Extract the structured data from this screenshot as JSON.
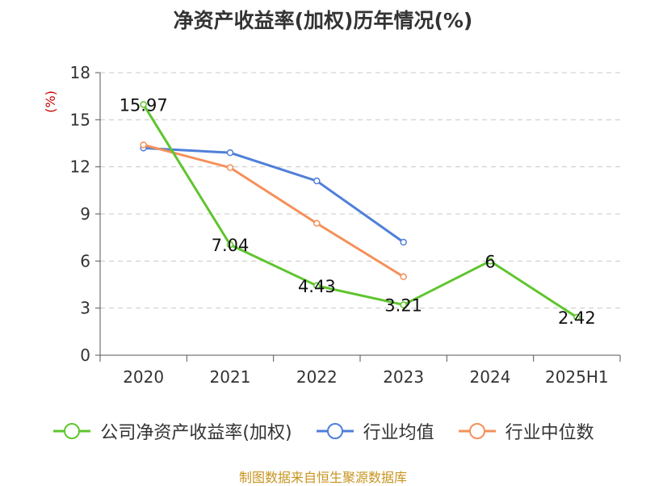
{
  "chart_data": {
    "type": "line",
    "title": "净资产收益率(加权)历年情况(%)",
    "ylabel": "(%)",
    "categories": [
      "2020",
      "2021",
      "2022",
      "2023",
      "2024",
      "2025H1"
    ],
    "ylim": [
      0,
      18
    ],
    "yticks": [
      0,
      3,
      6,
      9,
      12,
      15,
      18
    ],
    "grid": true,
    "legend_position": "bottom",
    "series": [
      {
        "name": "公司净资产收益率(加权)",
        "color": "#5fc52e",
        "values": [
          15.97,
          7.04,
          4.43,
          3.21,
          6,
          2.42
        ],
        "labels": [
          "15.97",
          "7.04",
          "4.43",
          "3.21",
          "6",
          "2.42"
        ]
      },
      {
        "name": "行业均值",
        "color": "#4f7fd9",
        "values": [
          13.2,
          12.9,
          11.1,
          7.2,
          null,
          null
        ]
      },
      {
        "name": "行业中位数",
        "color": "#f5905a",
        "values": [
          13.4,
          11.95,
          8.4,
          5.0,
          null,
          null
        ]
      }
    ]
  },
  "source": "制图数据来自恒生聚源数据库"
}
